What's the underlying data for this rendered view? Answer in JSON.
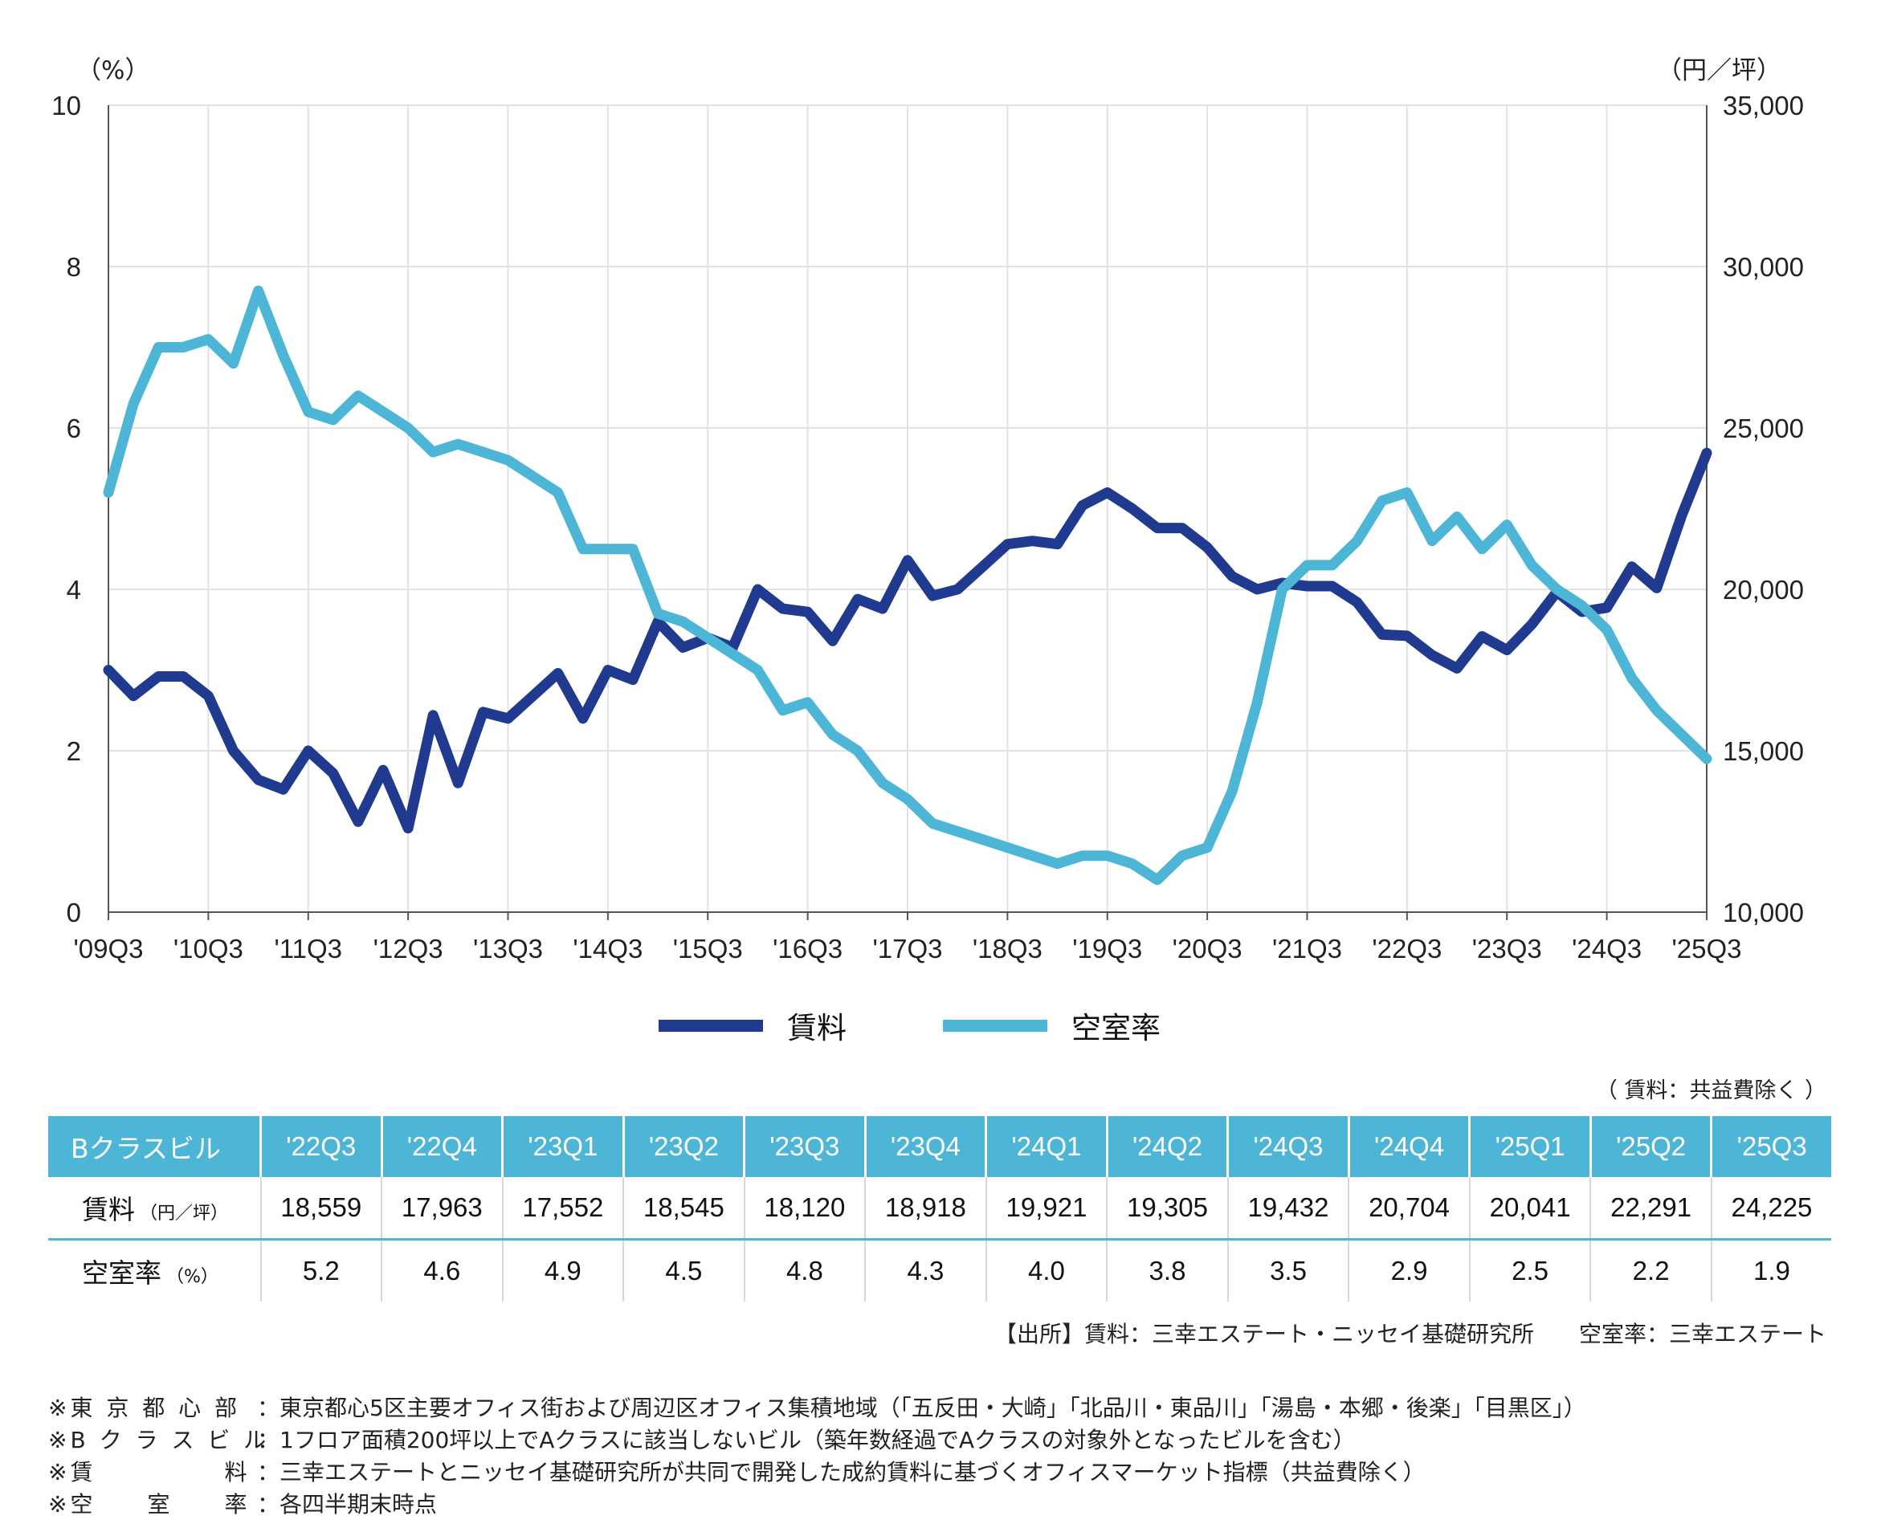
{
  "chart_data": {
    "type": "line",
    "x": [
      "'09Q3",
      "'09Q4",
      "'10Q1",
      "'10Q2",
      "'10Q3",
      "'10Q4",
      "'11Q1",
      "'11Q2",
      "'11Q3",
      "'11Q4",
      "'12Q1",
      "'12Q2",
      "'12Q3",
      "'12Q4",
      "'13Q1",
      "'13Q2",
      "'13Q3",
      "'13Q4",
      "'14Q1",
      "'14Q2",
      "'14Q3",
      "'14Q4",
      "'15Q1",
      "'15Q2",
      "'15Q3",
      "'15Q4",
      "'16Q1",
      "'16Q2",
      "'16Q3",
      "'16Q4",
      "'17Q1",
      "'17Q2",
      "'17Q3",
      "'17Q4",
      "'18Q1",
      "'18Q2",
      "'18Q3",
      "'18Q4",
      "'19Q1",
      "'19Q2",
      "'19Q3",
      "'19Q4",
      "'20Q1",
      "'20Q2",
      "'20Q3",
      "'20Q4",
      "'21Q1",
      "'21Q2",
      "'21Q3",
      "'21Q4",
      "'22Q1",
      "'22Q2",
      "'22Q3",
      "'22Q4",
      "'23Q1",
      "'23Q2",
      "'23Q3",
      "'23Q4",
      "'24Q1",
      "'24Q2",
      "'24Q3",
      "'24Q4",
      "'25Q1",
      "'25Q2",
      "'25Q3"
    ],
    "x_tick_labels": [
      "'09Q3",
      "'10Q3",
      "'11Q3",
      "'12Q3",
      "'13Q3",
      "'14Q3",
      "'15Q3",
      "'16Q3",
      "'17Q3",
      "'18Q3",
      "'19Q3",
      "'20Q3",
      "'21Q3",
      "'22Q3",
      "'23Q3",
      "'24Q3",
      "'25Q3"
    ],
    "y_left": {
      "unit": "（%）",
      "range": [
        0,
        10
      ],
      "ticks": [
        "0",
        "2",
        "4",
        "6",
        "8",
        "10"
      ]
    },
    "y_right": {
      "unit": "（円／坪）",
      "range": [
        10000,
        35000
      ],
      "ticks": [
        "10,000",
        "15,000",
        "20,000",
        "25,000",
        "30,000",
        "35,000"
      ]
    },
    "grid": true,
    "legend_position": "bottom",
    "series": [
      {
        "name": "賃料",
        "axis": "right",
        "color": "#1f3a8f",
        "values": [
          17500,
          16700,
          17300,
          17300,
          16700,
          15000,
          14100,
          13800,
          15000,
          14300,
          12800,
          14400,
          12600,
          16100,
          14000,
          16200,
          16000,
          16700,
          17400,
          16000,
          17500,
          17200,
          19000,
          18200,
          18500,
          18200,
          20000,
          19400,
          19300,
          18400,
          19700,
          19400,
          20900,
          19800,
          20000,
          20700,
          21400,
          21500,
          21400,
          22600,
          23000,
          22500,
          21900,
          21900,
          21300,
          20400,
          20000,
          20200,
          20100,
          20100,
          19600,
          18600,
          18559,
          17963,
          17552,
          18545,
          18120,
          18918,
          19921,
          19305,
          19432,
          20704,
          20041,
          22291,
          24225
        ]
      },
      {
        "name": "空室率",
        "axis": "left",
        "color": "#4db6d6",
        "values": [
          5.2,
          6.3,
          7.0,
          7.0,
          7.1,
          6.8,
          7.7,
          6.9,
          6.2,
          6.1,
          6.4,
          6.2,
          6.0,
          5.7,
          5.8,
          5.7,
          5.6,
          5.4,
          5.2,
          4.5,
          4.5,
          4.5,
          3.7,
          3.6,
          3.4,
          3.2,
          3.0,
          2.5,
          2.6,
          2.2,
          2.0,
          1.6,
          1.4,
          1.1,
          1.0,
          0.9,
          0.8,
          0.7,
          0.6,
          0.7,
          0.7,
          0.6,
          0.4,
          0.7,
          0.8,
          1.5,
          2.6,
          4.0,
          4.3,
          4.3,
          4.6,
          5.1,
          5.2,
          4.6,
          4.9,
          4.5,
          4.8,
          4.3,
          4.0,
          3.8,
          3.5,
          2.9,
          2.5,
          2.2,
          1.9
        ]
      }
    ]
  },
  "legend": [
    {
      "label": "賃料",
      "color": "#1f3a8f"
    },
    {
      "label": "空室率",
      "color": "#4db6d6"
    }
  ],
  "table": {
    "note": "（ 賃料：共益費除く ）",
    "header_label": "Bクラスビル",
    "columns": [
      "'22Q3",
      "'22Q4",
      "'23Q1",
      "'23Q2",
      "'23Q3",
      "'23Q4",
      "'24Q1",
      "'24Q2",
      "'24Q3",
      "'24Q4",
      "'25Q1",
      "'25Q2",
      "'25Q3"
    ],
    "rows": [
      {
        "label": "賃料",
        "unit": "（円／坪）",
        "values": [
          "18,559",
          "17,963",
          "17,552",
          "18,545",
          "18,120",
          "18,918",
          "19,921",
          "19,305",
          "19,432",
          "20,704",
          "20,041",
          "22,291",
          "24,225"
        ]
      },
      {
        "label": "空室率",
        "unit": "（%）",
        "values": [
          "5.2",
          "4.6",
          "4.9",
          "4.5",
          "4.8",
          "4.3",
          "4.0",
          "3.8",
          "3.5",
          "2.9",
          "2.5",
          "2.2",
          "1.9"
        ]
      }
    ]
  },
  "source": "【出所】賃料：三幸エステート・ニッセイ基礎研究所　　空室率：三幸エステート",
  "notes": [
    {
      "label": "※東 京 都 心 部",
      "text": "：東京都心5区主要オフィス街および周辺区オフィス集積地域（「五反田・大崎」「北品川・東品川」「湯島・本郷・後楽」「目黒区」）"
    },
    {
      "label": "※B ク ラ ス ビ ル",
      "text": "：1フロア面積200坪以上でAクラスに該当しないビル（築年数経過でAクラスの対象外となったビルを含む）"
    },
    {
      "label": "※賃　　　　　料",
      "text": "：三幸エステートとニッセイ基礎研究所が共同で開発した成約賃料に基づくオフィスマーケット指標（共益費除く）"
    },
    {
      "label": "※空　　室　　率",
      "text": "：各四半期末時点"
    }
  ]
}
